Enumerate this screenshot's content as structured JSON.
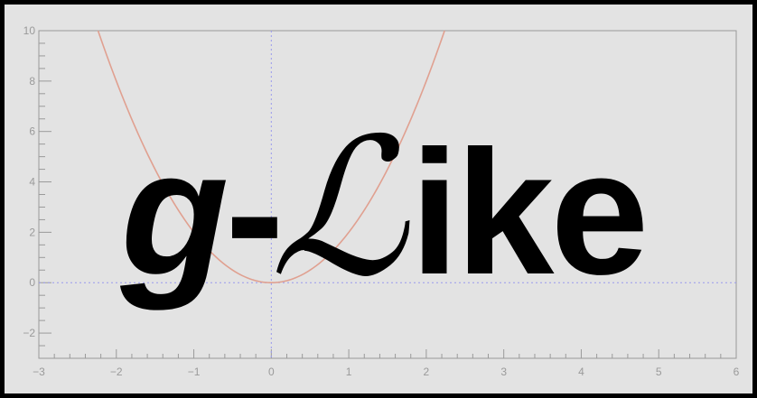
{
  "logo": {
    "part_g": "g",
    "part_dash": "-",
    "part_script": "ℒ",
    "part_ike": "ike"
  },
  "plot": {
    "x_range": [
      -3,
      6
    ],
    "y_range": [
      -3,
      10
    ],
    "x_ticks": [
      -3,
      -2,
      -1,
      0,
      1,
      2,
      3,
      4,
      5,
      6
    ],
    "x_tick_labels": [
      "−3",
      "−2",
      "−1",
      "0",
      "1",
      "2",
      "3",
      "4",
      "5",
      "6"
    ],
    "y_ticks": [
      -2,
      0,
      2,
      4,
      6,
      8,
      10
    ],
    "y_tick_labels": [
      "−2",
      "0",
      "2",
      "4",
      "6",
      "8",
      "10"
    ],
    "curve": "parabola y = 2x²",
    "curve_color": "#e0a090",
    "axis_line_color": "#9a9aee",
    "frame_color": "#9a9a9a",
    "background_color": "#e3e3e3"
  }
}
